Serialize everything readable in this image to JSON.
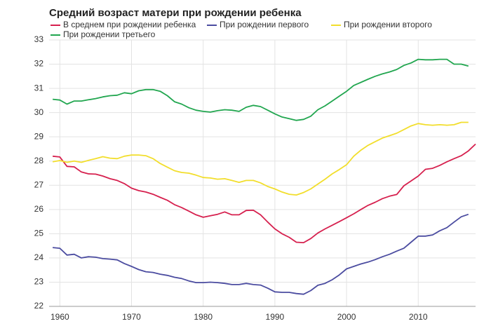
{
  "chart_data": {
    "type": "line",
    "title": "Средний возраст матери при рождении ребенка",
    "x": [
      1959,
      1960,
      1961,
      1962,
      1963,
      1964,
      1965,
      1966,
      1967,
      1968,
      1969,
      1970,
      1971,
      1972,
      1973,
      1974,
      1975,
      1976,
      1977,
      1978,
      1979,
      1980,
      1981,
      1982,
      1983,
      1984,
      1985,
      1986,
      1987,
      1988,
      1989,
      1990,
      1991,
      1992,
      1993,
      1994,
      1995,
      1996,
      1997,
      1998,
      1999,
      2000,
      2001,
      2002,
      2003,
      2004,
      2005,
      2006,
      2007,
      2008,
      2009,
      2010,
      2011,
      2012,
      2013,
      2014,
      2015,
      2016,
      2017,
      2018
    ],
    "series": [
      {
        "name": "В среднем при рождении ребенка",
        "color": "#d6204e",
        "values": [
          28.2,
          28.17,
          27.78,
          27.76,
          27.55,
          27.47,
          27.46,
          27.38,
          27.27,
          27.2,
          27.07,
          26.88,
          26.78,
          26.72,
          26.63,
          26.5,
          26.38,
          26.2,
          26.08,
          25.93,
          25.78,
          25.68,
          25.74,
          25.8,
          25.9,
          25.78,
          25.78,
          25.96,
          25.97,
          25.78,
          25.48,
          25.2,
          25.0,
          24.85,
          24.65,
          24.63,
          24.8,
          25.03,
          25.2,
          25.35,
          25.5,
          25.66,
          25.82,
          26.0,
          26.17,
          26.3,
          26.45,
          26.55,
          26.62,
          26.98,
          27.18,
          27.38,
          27.66,
          27.7,
          27.82,
          27.97,
          28.1,
          28.22,
          28.42,
          28.7
        ]
      },
      {
        "name": "При рождении первого",
        "color": "#4b4ca0",
        "values": [
          24.43,
          24.4,
          24.12,
          24.15,
          24.0,
          24.05,
          24.03,
          23.97,
          23.95,
          23.92,
          23.77,
          23.65,
          23.52,
          23.43,
          23.4,
          23.33,
          23.28,
          23.2,
          23.15,
          23.05,
          22.98,
          22.98,
          23.0,
          22.98,
          22.95,
          22.9,
          22.9,
          22.95,
          22.9,
          22.88,
          22.75,
          22.6,
          22.58,
          22.58,
          22.53,
          22.5,
          22.65,
          22.87,
          22.95,
          23.1,
          23.3,
          23.55,
          23.65,
          23.75,
          23.83,
          23.93,
          24.05,
          24.15,
          24.28,
          24.4,
          24.65,
          24.9,
          24.9,
          24.95,
          25.12,
          25.25,
          25.48,
          25.7,
          25.8,
          null
        ]
      },
      {
        "name": "При рождении второго",
        "color": "#f2de2c",
        "values": [
          27.97,
          28.02,
          27.95,
          28.0,
          27.95,
          28.03,
          28.1,
          28.18,
          28.12,
          28.1,
          28.2,
          28.25,
          28.25,
          28.22,
          28.1,
          27.9,
          27.75,
          27.6,
          27.53,
          27.5,
          27.42,
          27.32,
          27.3,
          27.25,
          27.27,
          27.2,
          27.12,
          27.2,
          27.2,
          27.1,
          26.95,
          26.85,
          26.72,
          26.63,
          26.6,
          26.7,
          26.85,
          27.05,
          27.25,
          27.47,
          27.65,
          27.85,
          28.2,
          28.45,
          28.65,
          28.8,
          28.95,
          29.05,
          29.15,
          29.3,
          29.45,
          29.55,
          29.5,
          29.48,
          29.5,
          29.48,
          29.5,
          29.6,
          29.6,
          null
        ]
      },
      {
        "name": "При рождении третьего",
        "color": "#21a64f",
        "values": [
          30.55,
          30.52,
          30.35,
          30.48,
          30.48,
          30.53,
          30.58,
          30.65,
          30.7,
          30.72,
          30.82,
          30.78,
          30.9,
          30.95,
          30.95,
          30.88,
          30.7,
          30.45,
          30.35,
          30.2,
          30.1,
          30.05,
          30.02,
          30.08,
          30.12,
          30.1,
          30.05,
          30.22,
          30.3,
          30.25,
          30.1,
          29.95,
          29.82,
          29.75,
          29.68,
          29.72,
          29.85,
          30.12,
          30.28,
          30.48,
          30.68,
          30.88,
          31.12,
          31.25,
          31.38,
          31.5,
          31.6,
          31.68,
          31.78,
          31.95,
          32.05,
          32.2,
          32.18,
          32.18,
          32.2,
          32.2,
          32.0,
          32.0,
          31.92,
          null
        ]
      }
    ],
    "xlim": [
      1958.5,
      2018
    ],
    "xticks": [
      1960,
      1970,
      1980,
      1990,
      2000,
      2010
    ],
    "ylim": [
      22,
      33
    ],
    "yticks": [
      22,
      23,
      24,
      25,
      26,
      27,
      28,
      29,
      30,
      31,
      32,
      33
    ],
    "grid": true
  }
}
